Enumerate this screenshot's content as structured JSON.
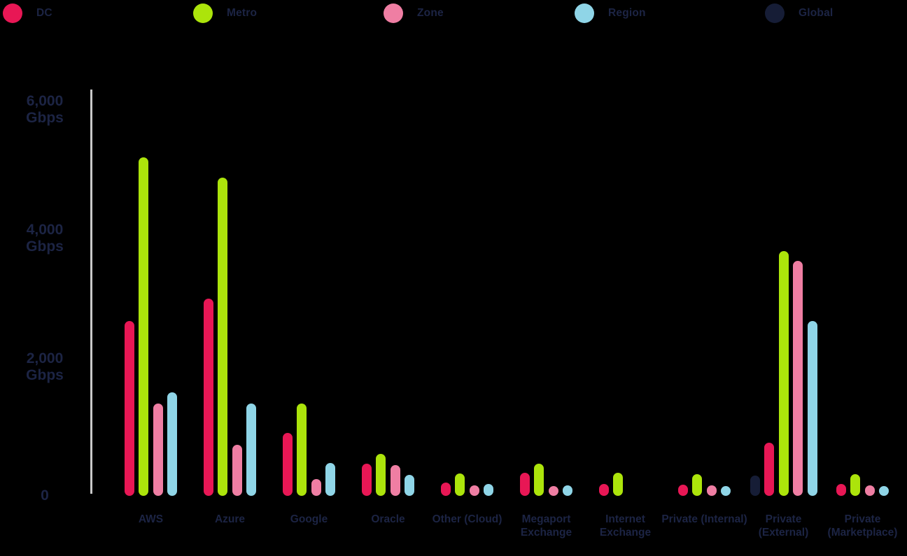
{
  "legend": {
    "items": [
      {
        "name": "dc",
        "label": "DC",
        "color": "#E81755"
      },
      {
        "name": "metro",
        "label": "Metro",
        "color": "#ACE40B"
      },
      {
        "name": "zone",
        "label": "Zone",
        "color": "#EF7EA3"
      },
      {
        "name": "region",
        "label": "Region",
        "color": "#8FD5E7"
      },
      {
        "name": "global",
        "label": "Global",
        "color": "#161D36"
      }
    ]
  },
  "y_axis": {
    "ticks": [
      {
        "value": 6000,
        "lines": [
          "6,000",
          "Gbps"
        ]
      },
      {
        "value": 4000,
        "lines": [
          "4,000",
          "Gbps"
        ]
      },
      {
        "value": 2000,
        "lines": [
          "2,000",
          "Gbps"
        ]
      },
      {
        "value": 0,
        "lines": [
          "0"
        ]
      }
    ]
  },
  "chart_data": {
    "type": "bar",
    "title": "",
    "xlabel": "",
    "ylabel": "Gbps",
    "ylim": [
      0,
      6000
    ],
    "grid": false,
    "legend_position": "top",
    "background": "#000000",
    "categories": [
      "AWS",
      "Azure",
      "Google",
      "Oracle",
      "Other (Cloud)",
      "Megaport Exchange",
      "Internet Exchange",
      "Private (Internal)",
      "Private (External)",
      "Private (Marketplace)"
    ],
    "series": [
      {
        "name": "DC",
        "color": "#E81755",
        "values": [
          2720,
          3070,
          980,
          500,
          210,
          360,
          180,
          175,
          825,
          190
        ]
      },
      {
        "name": "Metro",
        "color": "#ACE40B",
        "values": [
          5260,
          4950,
          1430,
          650,
          350,
          500,
          360,
          335,
          3800,
          340
        ]
      },
      {
        "name": "Zone",
        "color": "#EF7EA3",
        "values": [
          1440,
          790,
          260,
          480,
          160,
          150,
          0,
          160,
          3650,
          160
        ]
      },
      {
        "name": "Region",
        "color": "#8FD5E7",
        "values": [
          1610,
          1430,
          510,
          330,
          180,
          160,
          0,
          150,
          2720,
          150
        ]
      },
      {
        "name": "Global",
        "color": "#161D36",
        "values": [
          0,
          0,
          0,
          0,
          0,
          0,
          0,
          0,
          320,
          0
        ]
      }
    ],
    "groups": [
      {
        "category": "AWS",
        "label_lines": [
          "AWS"
        ],
        "bars": [
          {
            "series": "DC",
            "value": 2720
          },
          {
            "series": "Metro",
            "value": 5260
          },
          {
            "series": "Zone",
            "value": 1440
          },
          {
            "series": "Region",
            "value": 1610
          }
        ]
      },
      {
        "category": "Azure",
        "label_lines": [
          "Azure"
        ],
        "bars": [
          {
            "series": "DC",
            "value": 3070
          },
          {
            "series": "Metro",
            "value": 4950
          },
          {
            "series": "Zone",
            "value": 790
          },
          {
            "series": "Region",
            "value": 1430
          }
        ]
      },
      {
        "category": "Google",
        "label_lines": [
          "Google"
        ],
        "bars": [
          {
            "series": "DC",
            "value": 980
          },
          {
            "series": "Metro",
            "value": 1430
          },
          {
            "series": "Zone",
            "value": 260
          },
          {
            "series": "Region",
            "value": 510
          }
        ]
      },
      {
        "category": "Oracle",
        "label_lines": [
          "Oracle"
        ],
        "bars": [
          {
            "series": "DC",
            "value": 500
          },
          {
            "series": "Metro",
            "value": 650
          },
          {
            "series": "Zone",
            "value": 480
          },
          {
            "series": "Region",
            "value": 330
          }
        ]
      },
      {
        "category": "Other (Cloud)",
        "label_lines": [
          "Other (Cloud)"
        ],
        "bars": [
          {
            "series": "DC",
            "value": 210
          },
          {
            "series": "Metro",
            "value": 350
          },
          {
            "series": "Zone",
            "value": 160
          },
          {
            "series": "Region",
            "value": 180
          }
        ]
      },
      {
        "category": "Megaport Exchange",
        "label_lines": [
          "Megaport",
          "Exchange"
        ],
        "bars": [
          {
            "series": "DC",
            "value": 360
          },
          {
            "series": "Metro",
            "value": 500
          },
          {
            "series": "Zone",
            "value": 150
          },
          {
            "series": "Region",
            "value": 160
          }
        ]
      },
      {
        "category": "Internet Exchange",
        "label_lines": [
          "Internet",
          "Exchange"
        ],
        "bars": [
          {
            "series": "DC",
            "value": 180
          },
          {
            "series": "Metro",
            "value": 360
          },
          {
            "series": "Zone",
            "value": 0
          },
          {
            "series": "Region",
            "value": 0
          }
        ]
      },
      {
        "category": "Private (Internal)",
        "label_lines": [
          "Private (Internal)"
        ],
        "bars": [
          {
            "series": "DC",
            "value": 175
          },
          {
            "series": "Metro",
            "value": 335
          },
          {
            "series": "Zone",
            "value": 160
          },
          {
            "series": "Region",
            "value": 150
          }
        ]
      },
      {
        "category": "Private (External)",
        "label_lines": [
          "Private",
          "(External)"
        ],
        "bars": [
          {
            "series": "Global",
            "value": 320
          },
          {
            "series": "DC",
            "value": 825
          },
          {
            "series": "Metro",
            "value": 3800
          },
          {
            "series": "Zone",
            "value": 3650
          },
          {
            "series": "Region",
            "value": 2720
          }
        ]
      },
      {
        "category": "Private (Marketplace)",
        "label_lines": [
          "Private",
          "(Marketplace)"
        ],
        "bars": [
          {
            "series": "DC",
            "value": 190
          },
          {
            "series": "Metro",
            "value": 340
          },
          {
            "series": "Zone",
            "value": 160
          },
          {
            "series": "Region",
            "value": 150
          }
        ]
      }
    ]
  }
}
